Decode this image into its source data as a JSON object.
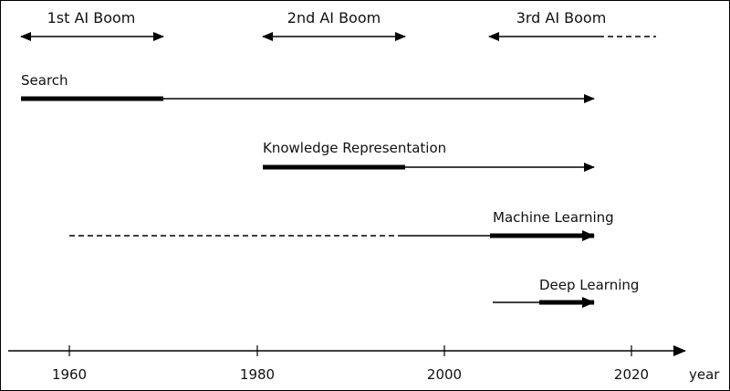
{
  "booms": [
    {
      "label": "1st AI Boom"
    },
    {
      "label": "2nd AI Boom"
    },
    {
      "label": "3rd AI Boom"
    }
  ],
  "tracks": [
    {
      "label": "Search"
    },
    {
      "label": "Knowledge Representation"
    },
    {
      "label": "Machine Learning"
    },
    {
      "label": "Deep Learning"
    }
  ],
  "axis": {
    "ticks": [
      "1960",
      "1980",
      "2000",
      "2020"
    ],
    "unit": "year"
  },
  "colors": {
    "ink": "#000000",
    "background": "#ffffff"
  }
}
